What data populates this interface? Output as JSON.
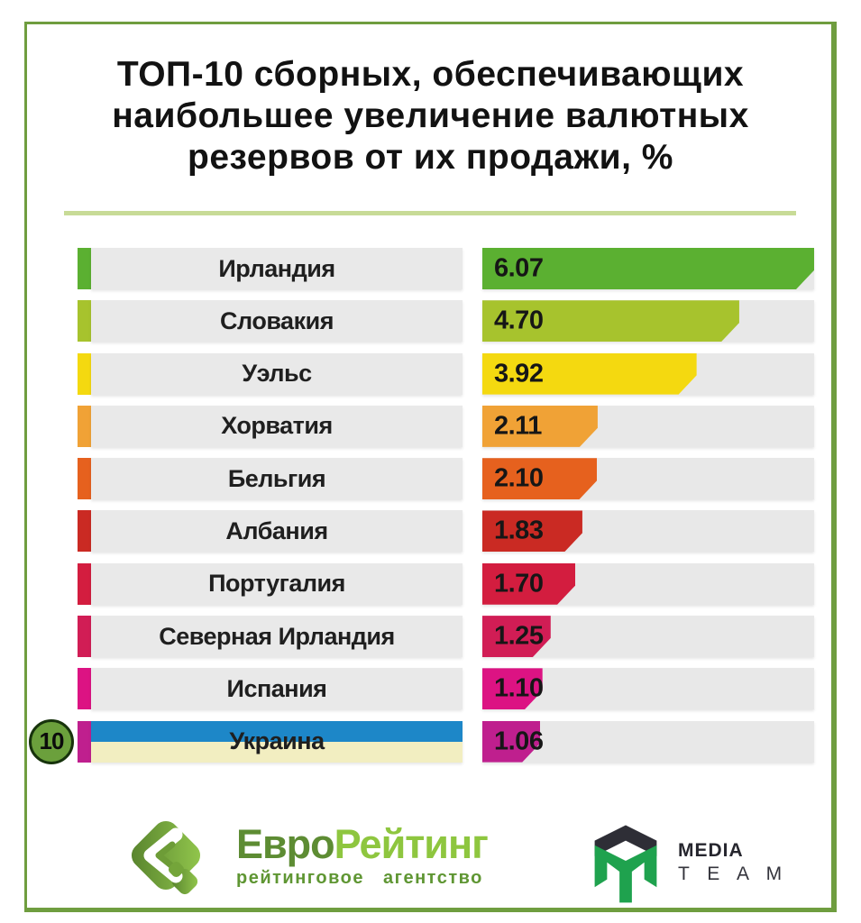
{
  "style": {
    "frame_border": "#6f9d3f",
    "divider": "#c8db97",
    "label_bg": "#e9e9e9",
    "track_bg": "#e8e8e8"
  },
  "title": {
    "full": "ТОП-10 сборных, обеспечивающих наибольшее увеличение валютных резервов от их продажи, %",
    "lines": [
      "ТОП-10 сборных, обеспечивающих",
      "наибольшее увеличение валютных",
      "резервов от их продажи, %"
    ]
  },
  "chart_data": {
    "type": "bar",
    "orientation": "horizontal",
    "title": "ТОП-10 сборных, обеспечивающих наибольшее увеличение валютных резервов от их продажи, %",
    "unit": "%",
    "max_value": 6.07,
    "xlim": [
      0,
      6.07
    ],
    "rows": [
      {
        "rank": 1,
        "label": "Ирландия",
        "value": "6.07",
        "color": "#5bb031"
      },
      {
        "rank": 2,
        "label": "Словакия",
        "value": "4.70",
        "color": "#a7c32d"
      },
      {
        "rank": 3,
        "label": "Уэльс",
        "value": "3.92",
        "color": "#f4d910"
      },
      {
        "rank": 4,
        "label": "Хорватия",
        "value": "2.11",
        "color": "#f0a236"
      },
      {
        "rank": 5,
        "label": "Бельгия",
        "value": "2.10",
        "color": "#e6611e"
      },
      {
        "rank": 6,
        "label": "Албания",
        "value": "1.83",
        "color": "#ca2a23"
      },
      {
        "rank": 7,
        "label": "Португалия",
        "value": "1.70",
        "color": "#d31d3f"
      },
      {
        "rank": 8,
        "label": "Северная Ирландия",
        "value": "1.25",
        "color": "#d11d55"
      },
      {
        "rank": 9,
        "label": "Испания",
        "value": "1.10",
        "color": "#dc1383"
      },
      {
        "rank": 10,
        "label": "Украина",
        "value": "1.06",
        "color": "#bf1f8e",
        "flag": true,
        "badge": "10"
      }
    ],
    "flag_colors": {
      "blue": "#1d87c8",
      "yellow": "#f2eec1"
    },
    "badge": {
      "text": "10",
      "bg": "#6ba03c",
      "ring": "#17330c"
    }
  },
  "footer": {
    "eurorating": {
      "word_part1": "Евро",
      "word_part2": "Рейтинг",
      "subtitle": "рейтинговое агентство",
      "color_dark": "#5d8c33",
      "color_light": "#8ec63f"
    },
    "mediateam": {
      "line1": "MEDIA",
      "line2": "T E A M",
      "green": "#1fa24e",
      "dark": "#2e2e36"
    }
  }
}
